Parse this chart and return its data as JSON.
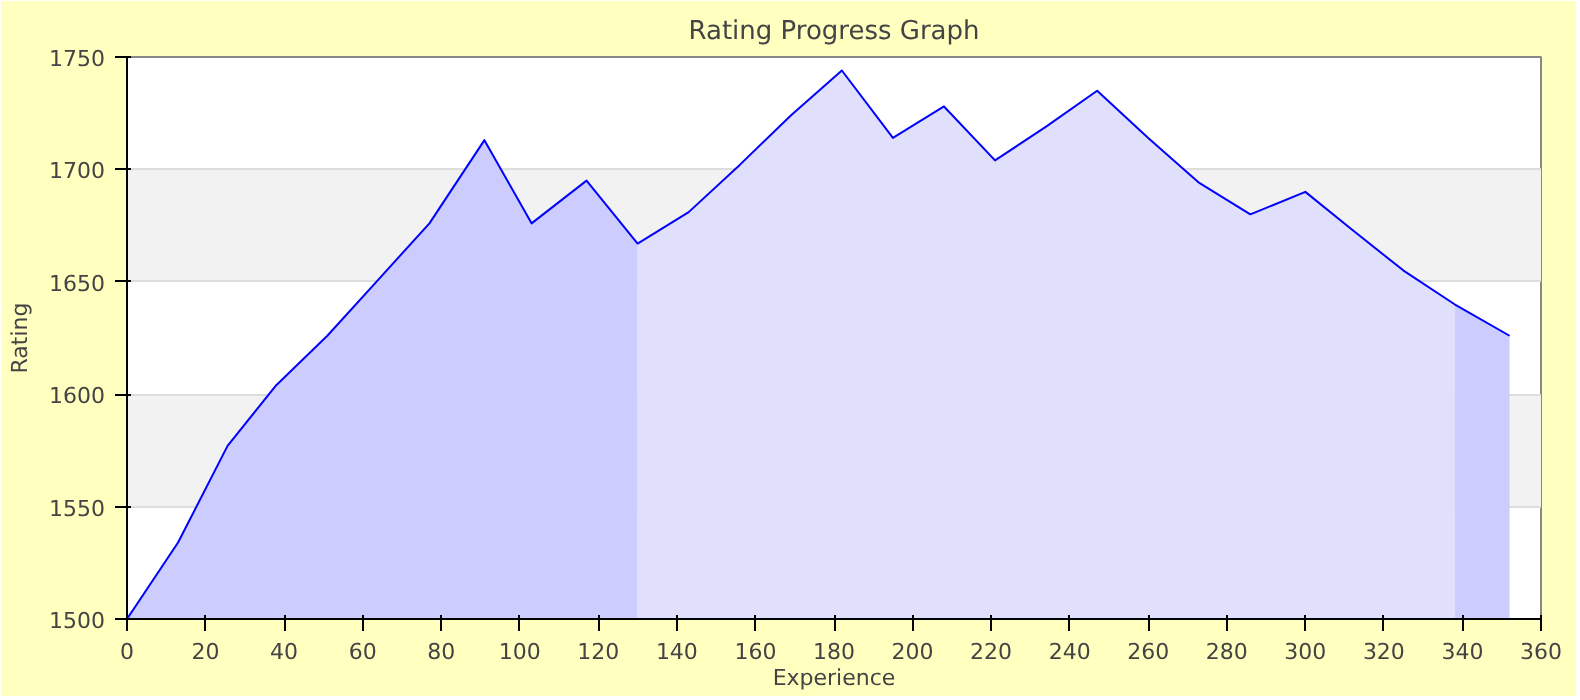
{
  "chart_data": {
    "type": "area",
    "title": "Rating Progress Graph",
    "xlabel": "Experience",
    "ylabel": "Rating",
    "xlim": [
      0,
      360
    ],
    "xticks": [
      0,
      20,
      40,
      60,
      80,
      100,
      120,
      140,
      160,
      180,
      200,
      220,
      240,
      260,
      280,
      300,
      320,
      340,
      360
    ],
    "ylim": [
      1500,
      1750
    ],
    "yticks": [
      1500,
      1550,
      1600,
      1650,
      1700,
      1750
    ],
    "grid": "y",
    "series": [
      {
        "color": "#ccccff",
        "x": [
          0,
          13,
          25.6,
          38,
          51,
          64,
          77,
          91,
          103,
          117,
          130
        ],
        "values": [
          1500,
          1534,
          1577,
          1604,
          1626,
          1651,
          1676,
          1713,
          1676,
          1695,
          1667
        ]
      },
      {
        "color": "#e0e0fc",
        "x": [
          130,
          143,
          156,
          169,
          182,
          195,
          208,
          221,
          234,
          247,
          260,
          273,
          286,
          300,
          312,
          325,
          338
        ],
        "values": [
          1667,
          1681,
          1702,
          1724,
          1744,
          1714,
          1728,
          1704,
          1719,
          1735,
          1714,
          1694,
          1680,
          1690,
          1673,
          1655,
          1640
        ]
      },
      {
        "color": "#ccccff",
        "x": [
          338,
          352
        ],
        "values": [
          1640,
          1626
        ]
      },
      {
        "type": "line",
        "color": "#0000ff",
        "x": [
          0,
          13,
          25.6,
          38,
          51,
          64,
          77,
          91,
          103,
          117,
          130,
          143,
          156,
          169,
          182,
          195,
          208,
          221,
          234,
          247,
          260,
          273,
          286,
          300,
          312,
          325,
          338,
          352
        ],
        "values": [
          1500,
          1534,
          1577,
          1604,
          1626,
          1651,
          1676,
          1713,
          1676,
          1695,
          1667,
          1681,
          1702,
          1724,
          1744,
          1714,
          1728,
          1704,
          1719,
          1735,
          1714,
          1694,
          1680,
          1690,
          1673,
          1655,
          1640,
          1626
        ]
      }
    ]
  }
}
